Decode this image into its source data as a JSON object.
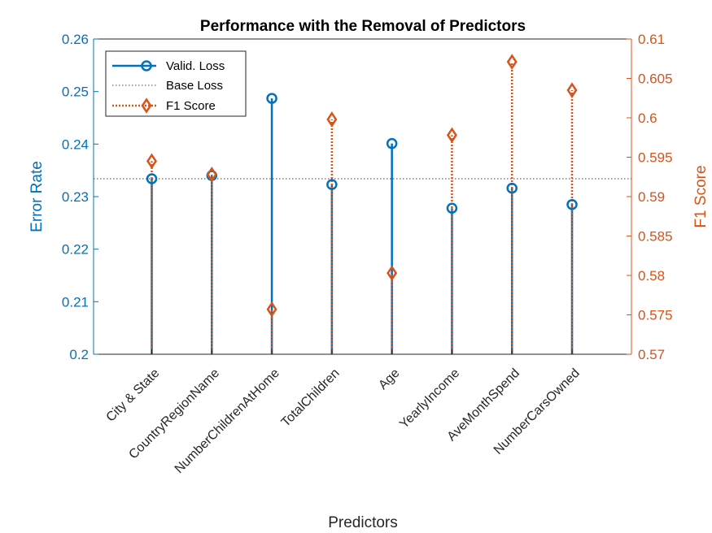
{
  "chart_data": {
    "type": "stem",
    "title": "Performance with the Removal of Predictors",
    "xlabel": "Predictors",
    "ylabel_left": "Error Rate",
    "ylabel_right": "F1 Score",
    "categories": [
      "City & State",
      "CountryRegionName",
      "NumberChildrenAtHome",
      "TotalChildren",
      "Age",
      "YearlyIncome",
      "AveMonthSpend",
      "NumberCarsOwned"
    ],
    "ylim_left": [
      0.2,
      0.26
    ],
    "yticks_left": [
      "0.2",
      "0.21",
      "0.22",
      "0.23",
      "0.24",
      "0.25",
      "0.26"
    ],
    "ylim_right": [
      0.57,
      0.61
    ],
    "yticks_right": [
      "0.57",
      "0.575",
      "0.58",
      "0.585",
      "0.59",
      "0.595",
      "0.6",
      "0.605",
      "0.61"
    ],
    "series": [
      {
        "name": "Valid. Loss",
        "axis": "left",
        "color": "#0072BD",
        "marker": "circle",
        "line": "solid",
        "values": [
          0.2334,
          0.234,
          0.2487,
          0.2323,
          0.2401,
          0.2278,
          0.2316,
          0.2285
        ]
      },
      {
        "name": "Base Loss",
        "axis": "left",
        "color": "#404040",
        "line": "dotted",
        "value": 0.2334
      },
      {
        "name": "F1 Score",
        "axis": "right",
        "color": "#D95319",
        "marker": "diamond",
        "line": "dotted",
        "values": [
          0.5945,
          0.5928,
          0.5757,
          0.5998,
          0.5803,
          0.5978,
          0.6071,
          0.6035
        ]
      }
    ],
    "legend_position": "top-left",
    "grid": false
  }
}
